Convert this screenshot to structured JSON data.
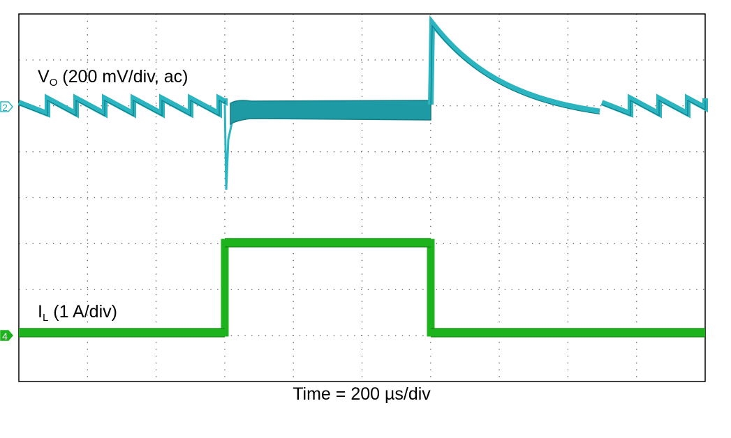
{
  "vo_label": {
    "main": "V",
    "sub": "O",
    "rest": " (200 mV/div, ac)"
  },
  "il_label": {
    "main": "I",
    "sub": "L",
    "rest": " (1 A/div)"
  },
  "time_label": "Time = 200 µs/div",
  "markers": {
    "vo": "2",
    "il": "4"
  }
}
